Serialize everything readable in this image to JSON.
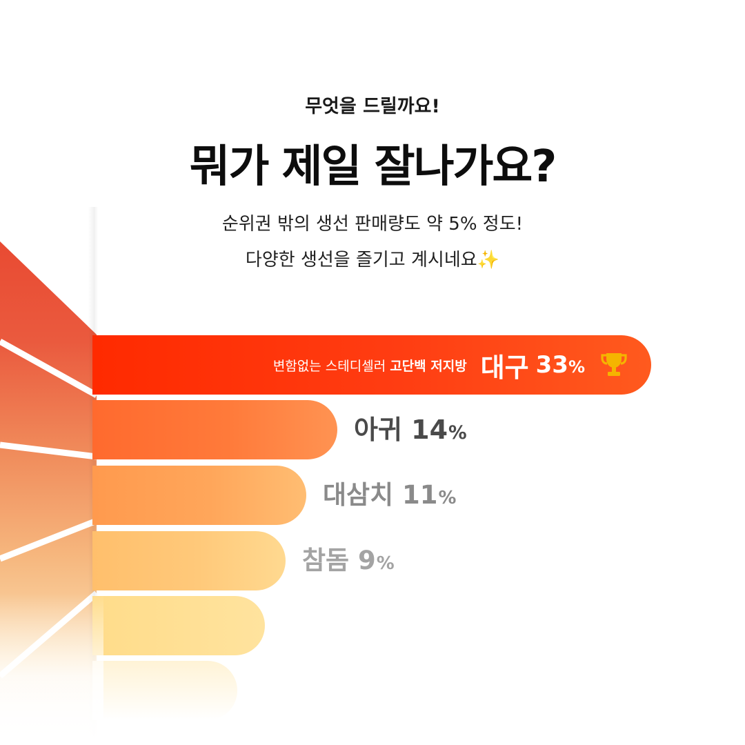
{
  "header": {
    "eyebrow": "무엇을 드릴까요!",
    "title": "뭐가 제일 잘나가요?",
    "subtitle_line1": "순위권 밖의 생선 판매량도 약 5% 정도!",
    "subtitle_line2": "다양한 생선을 즐기고 계시네요",
    "subtitle_emoji": "✨"
  },
  "top_item": {
    "tagline": "변함없는 스테디셀러",
    "tagline_bold": "고단백 저지방",
    "icon": "trophy-icon"
  },
  "colors": {
    "bar_1": "#ff3d12",
    "bar_2": "#ff7a3a",
    "bar_3": "#ffa65a",
    "bar_4": "#ffc97a",
    "bar_5": "#ffe39e",
    "bar_6": "#fff3d6",
    "label_2": "#4a4a4a",
    "label_3": "#8a8a8a",
    "label_4": "#a3a3a3",
    "trophy": "#f5b400"
  },
  "chart_data": {
    "type": "bar",
    "orientation": "horizontal",
    "categories": [
      "대구",
      "아귀",
      "대삼치",
      "참돔"
    ],
    "values": [
      33,
      14,
      11,
      9
    ],
    "unit": "%"
  }
}
